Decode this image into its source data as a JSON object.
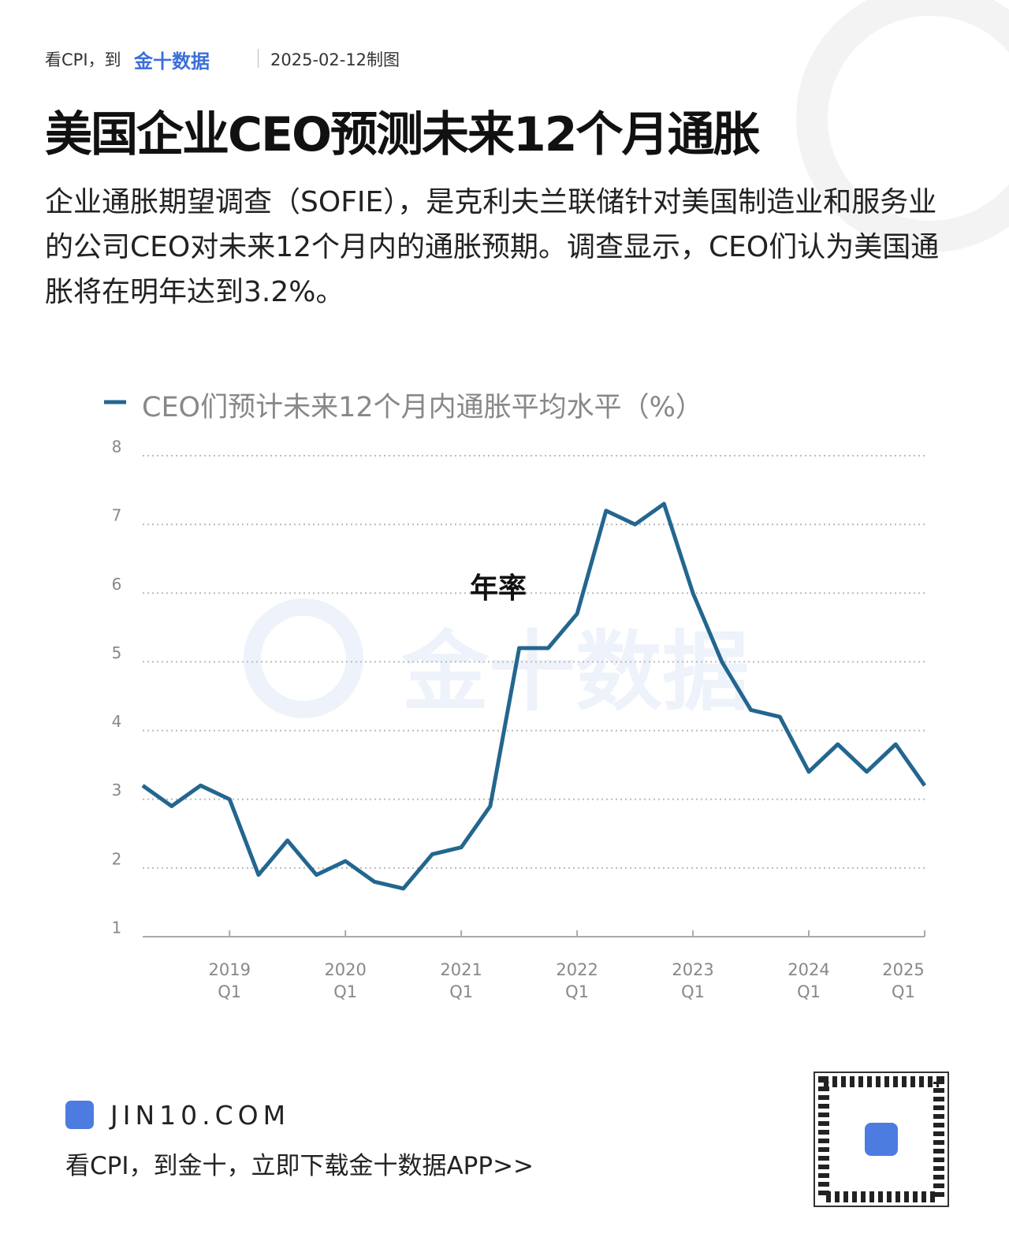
{
  "header": {
    "prefix": "看CPI，到",
    "brand": "金十数据",
    "date": "2025-02-12制图"
  },
  "title": "美国企业CEO预测未来12个月通胀",
  "description": "企业通胀期望调查（SOFIE），是克利夫兰联储针对美国制造业和服务业的公司CEO对未来12个月内的通胀预期。调查显示，CEO们认为美国通胀将在明年达到3.2%。",
  "chart_data": {
    "type": "line",
    "categories": [
      null,
      null,
      null,
      "2019 Q1",
      null,
      null,
      null,
      "2020 Q1",
      null,
      null,
      null,
      "2021 Q1",
      null,
      null,
      null,
      "2022 Q1",
      null,
      null,
      null,
      "2023 Q1",
      null,
      null,
      null,
      "2024 Q1",
      null,
      null,
      null,
      "2025 Q1"
    ],
    "series": [
      {
        "name": "CEO们预计未来12个月内通胀平均水平（%）",
        "color": "#23668f",
        "values": [
          3.2,
          2.9,
          3.2,
          3.0,
          1.9,
          2.4,
          1.9,
          2.1,
          1.8,
          1.7,
          2.2,
          2.3,
          2.9,
          5.2,
          5.2,
          5.7,
          7.2,
          7.0,
          7.3,
          6.0,
          5.0,
          4.3,
          4.2,
          3.4,
          3.8,
          3.4,
          3.8,
          3.2
        ]
      }
    ],
    "ylim": [
      1,
      8
    ],
    "yticks": [
      1,
      2,
      3,
      4,
      5,
      6,
      7,
      8
    ],
    "grid": true,
    "annotation": "年率",
    "watermark": "金十数据"
  },
  "footer": {
    "site": "JIN10.COM",
    "slogan": "看CPI，到金十，立即下载金十数据APP>>"
  }
}
